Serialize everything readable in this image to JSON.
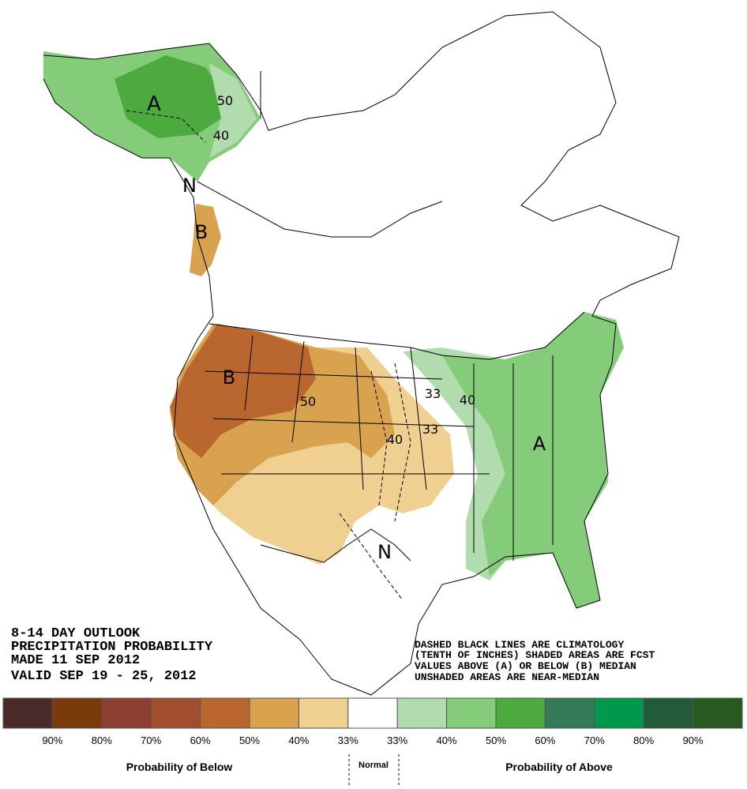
{
  "caption": [
    "8-14 DAY OUTLOOK",
    "PRECIPITATION PROBABILITY",
    "MADE  11 SEP 2012",
    "VALID  SEP 19 - 25, 2012"
  ],
  "notes": [
    "DASHED BLACK LINES ARE CLIMATOLOGY",
    "(TENTH OF INCHES) SHADED AREAS ARE FCST",
    "VALUES ABOVE (A) OR BELOW (B) MEDIAN",
    "UNSHADED AREAS ARE NEAR-MEDIAN"
  ],
  "map_labels": [
    "A",
    "50",
    "40",
    "N",
    "B",
    "B",
    "50",
    "40",
    "33",
    "33",
    "40",
    "A",
    "N"
  ],
  "legend": {
    "colors": [
      "#4a2a2a",
      "#7b3a0a",
      "#8e4030",
      "#a24e2e",
      "#b9672f",
      "#d9a24f",
      "#efd090",
      "#ffffff",
      "#b0dcae",
      "#84cc7a",
      "#4caa3e",
      "#347a5a",
      "#00984a",
      "#225a3a",
      "#265a1e"
    ],
    "labels": [
      "90%",
      "80%",
      "70%",
      "60%",
      "50%",
      "40%",
      "33%",
      "33%",
      "40%",
      "50%",
      "60%",
      "70%",
      "80%",
      "90%"
    ],
    "below": "Probability of Below",
    "normal": "Normal",
    "above": "Probability of Above"
  }
}
